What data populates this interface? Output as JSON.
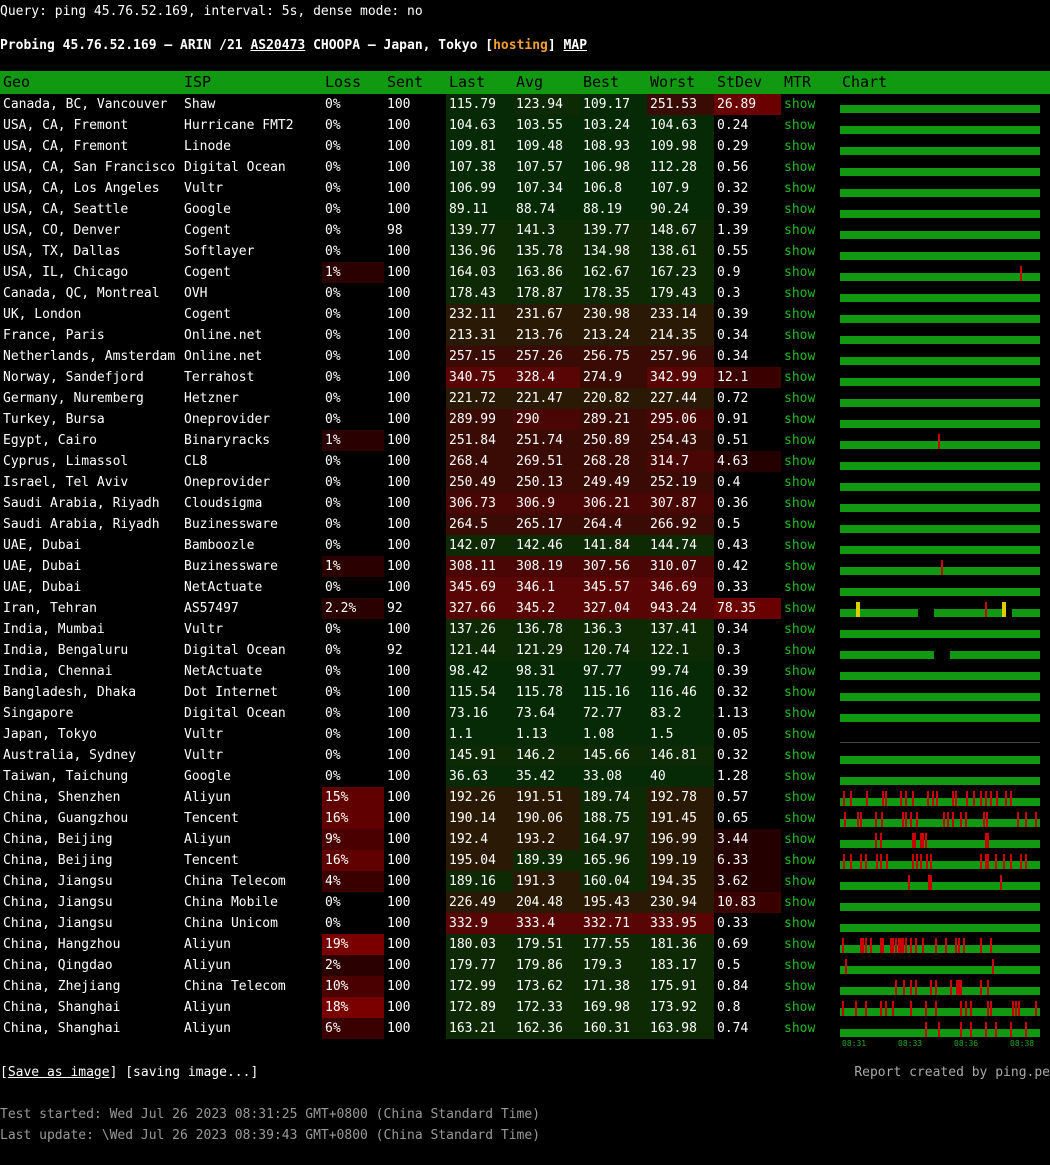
{
  "query_line": "Query: ping 45.76.52.169, interval: 5s, dense mode: no",
  "probe": {
    "prefix": "Probing 45.76.52.169 — ARIN /21 ",
    "asn": "AS20473",
    "middle": " CHOOPA — Japan, Tokyo [",
    "hosting": "hosting",
    "close": "] ",
    "map": "MAP"
  },
  "headers": [
    "Geo",
    "ISP",
    "Loss",
    "Sent",
    "Last",
    "Avg",
    "Best",
    "Worst",
    "StDev",
    "MTR",
    "Chart"
  ],
  "rows": [
    [
      "Canada, BC, Vancouver",
      "Shaw",
      "0%",
      "100",
      "115.79",
      "123.94",
      "109.17",
      "251.53",
      "26.89"
    ],
    [
      "USA, CA, Fremont",
      "Hurricane FMT2",
      "0%",
      "100",
      "104.63",
      "103.55",
      "103.24",
      "104.63",
      "0.24"
    ],
    [
      "USA, CA, Fremont",
      "Linode",
      "0%",
      "100",
      "109.81",
      "109.48",
      "108.93",
      "109.98",
      "0.29"
    ],
    [
      "USA, CA, San Francisco",
      "Digital Ocean",
      "0%",
      "100",
      "107.38",
      "107.57",
      "106.98",
      "112.28",
      "0.56"
    ],
    [
      "USA, CA, Los Angeles",
      "Vultr",
      "0%",
      "100",
      "106.99",
      "107.34",
      "106.8",
      "107.9",
      "0.32"
    ],
    [
      "USA, CA, Seattle",
      "Google",
      "0%",
      "100",
      "89.11",
      "88.74",
      "88.19",
      "90.24",
      "0.39"
    ],
    [
      "USA, CO, Denver",
      "Cogent",
      "0%",
      "98",
      "139.77",
      "141.3",
      "139.77",
      "148.67",
      "1.39"
    ],
    [
      "USA, TX, Dallas",
      "Softlayer",
      "0%",
      "100",
      "136.96",
      "135.78",
      "134.98",
      "138.61",
      "0.55"
    ],
    [
      "USA, IL, Chicago",
      "Cogent",
      "1%",
      "100",
      "164.03",
      "163.86",
      "162.67",
      "167.23",
      "0.9"
    ],
    [
      "Canada, QC, Montreal",
      "OVH",
      "0%",
      "100",
      "178.43",
      "178.87",
      "178.35",
      "179.43",
      "0.3"
    ],
    [
      "UK, London",
      "Cogent",
      "0%",
      "100",
      "232.11",
      "231.67",
      "230.98",
      "233.14",
      "0.39"
    ],
    [
      "France, Paris",
      "Online.net",
      "0%",
      "100",
      "213.31",
      "213.76",
      "213.24",
      "214.35",
      "0.34"
    ],
    [
      "Netherlands, Amsterdam",
      "Online.net",
      "0%",
      "100",
      "257.15",
      "257.26",
      "256.75",
      "257.96",
      "0.34"
    ],
    [
      "Norway, Sandefjord",
      "Terrahost",
      "0%",
      "100",
      "340.75",
      "328.4",
      "274.9",
      "342.99",
      "12.1"
    ],
    [
      "Germany, Nuremberg",
      "Hetzner",
      "0%",
      "100",
      "221.72",
      "221.47",
      "220.82",
      "227.44",
      "0.72"
    ],
    [
      "Turkey, Bursa",
      "Oneprovider",
      "0%",
      "100",
      "289.99",
      "290",
      "289.21",
      "295.06",
      "0.91"
    ],
    [
      "Egypt, Cairo",
      "Binaryracks",
      "1%",
      "100",
      "251.84",
      "251.74",
      "250.89",
      "254.43",
      "0.51"
    ],
    [
      "Cyprus, Limassol",
      "CL8",
      "0%",
      "100",
      "268.4",
      "269.51",
      "268.28",
      "314.7",
      "4.63"
    ],
    [
      "Israel, Tel Aviv",
      "Oneprovider",
      "0%",
      "100",
      "250.49",
      "250.13",
      "249.49",
      "252.19",
      "0.4"
    ],
    [
      "Saudi Arabia, Riyadh",
      "Cloudsigma",
      "0%",
      "100",
      "306.73",
      "306.9",
      "306.21",
      "307.87",
      "0.36"
    ],
    [
      "Saudi Arabia, Riyadh",
      "Buzinessware",
      "0%",
      "100",
      "264.5",
      "265.17",
      "264.4",
      "266.92",
      "0.5"
    ],
    [
      "UAE, Dubai",
      "Bamboozle",
      "0%",
      "100",
      "142.07",
      "142.46",
      "141.84",
      "144.74",
      "0.43"
    ],
    [
      "UAE, Dubai",
      "Buzinessware",
      "1%",
      "100",
      "308.11",
      "308.19",
      "307.56",
      "310.07",
      "0.42"
    ],
    [
      "UAE, Dubai",
      "NetActuate",
      "0%",
      "100",
      "345.69",
      "346.1",
      "345.57",
      "346.69",
      "0.33"
    ],
    [
      "Iran, Tehran",
      "AS57497",
      "2.2%",
      "92",
      "327.66",
      "345.2",
      "327.04",
      "943.24",
      "78.35"
    ],
    [
      "India, Mumbai",
      "Vultr",
      "0%",
      "100",
      "137.26",
      "136.78",
      "136.3",
      "137.41",
      "0.34"
    ],
    [
      "India, Bengaluru",
      "Digital Ocean",
      "0%",
      "92",
      "121.44",
      "121.29",
      "120.74",
      "122.1",
      "0.3"
    ],
    [
      "India, Chennai",
      "NetActuate",
      "0%",
      "100",
      "98.42",
      "98.31",
      "97.77",
      "99.74",
      "0.39"
    ],
    [
      "Bangladesh, Dhaka",
      "Dot Internet",
      "0%",
      "100",
      "115.54",
      "115.78",
      "115.16",
      "116.46",
      "0.32"
    ],
    [
      "Singapore",
      "Digital Ocean",
      "0%",
      "100",
      "73.16",
      "73.64",
      "72.77",
      "83.2",
      "1.13"
    ],
    [
      "Japan, Tokyo",
      "Vultr",
      "0%",
      "100",
      "1.1",
      "1.13",
      "1.08",
      "1.5",
      "0.05"
    ],
    [
      "Australia, Sydney",
      "Vultr",
      "0%",
      "100",
      "145.91",
      "146.2",
      "145.66",
      "146.81",
      "0.32"
    ],
    [
      "Taiwan, Taichung",
      "Google",
      "0%",
      "100",
      "36.63",
      "35.42",
      "33.08",
      "40",
      "1.28"
    ],
    [
      "China, Shenzhen",
      "Aliyun",
      "15%",
      "100",
      "192.26",
      "191.51",
      "189.74",
      "192.78",
      "0.57"
    ],
    [
      "China, Guangzhou",
      "Tencent",
      "16%",
      "100",
      "190.14",
      "190.06",
      "188.75",
      "191.45",
      "0.65"
    ],
    [
      "China, Beijing",
      "Aliyun",
      "9%",
      "100",
      "192.4",
      "193.2",
      "164.97",
      "196.99",
      "3.44"
    ],
    [
      "China, Beijing",
      "Tencent",
      "16%",
      "100",
      "195.04",
      "189.39",
      "165.96",
      "199.19",
      "6.33"
    ],
    [
      "China, Jiangsu",
      "China Telecom",
      "4%",
      "100",
      "189.16",
      "191.3",
      "160.04",
      "194.35",
      "3.62"
    ],
    [
      "China, Jiangsu",
      "China Mobile",
      "0%",
      "100",
      "226.49",
      "204.48",
      "195.43",
      "230.94",
      "10.83"
    ],
    [
      "China, Jiangsu",
      "China Unicom",
      "0%",
      "100",
      "332.9",
      "333.4",
      "332.71",
      "333.95",
      "0.33"
    ],
    [
      "China, Hangzhou",
      "Aliyun",
      "19%",
      "100",
      "180.03",
      "179.51",
      "177.55",
      "181.36",
      "0.69"
    ],
    [
      "China, Qingdao",
      "Aliyun",
      "2%",
      "100",
      "179.77",
      "179.86",
      "179.3",
      "183.17",
      "0.5"
    ],
    [
      "China, Zhejiang",
      "China Telecom",
      "10%",
      "100",
      "172.99",
      "173.62",
      "171.38",
      "175.91",
      "0.84"
    ],
    [
      "China, Shanghai",
      "Aliyun",
      "18%",
      "100",
      "172.89",
      "172.33",
      "169.98",
      "173.92",
      "0.8"
    ],
    [
      "China, Shanghai",
      "Aliyun",
      "6%",
      "100",
      "163.21",
      "162.36",
      "160.31",
      "163.98",
      "0.74"
    ]
  ],
  "mtr_label": "show",
  "time_ticks": [
    "08:31",
    "08:33",
    "08:36",
    "08:38"
  ],
  "footer": {
    "save_label": "Save as image",
    "saving_label": "[saving image...]",
    "report": "Report created by ping.pe",
    "started": "Test started: Wed Jul 26 2023 08:31:25 GMT+0800 (China Standard Time)",
    "updated": "Last update: \\Wed Jul 26 2023 08:39:43 GMT+0800 (China Standard Time)"
  },
  "colors": {
    "header_bg": "#119911",
    "show_link": "#22bb22",
    "hosting": "#f0a030",
    "chart_bar": "#119911",
    "loss_spike": "#cc0000"
  }
}
